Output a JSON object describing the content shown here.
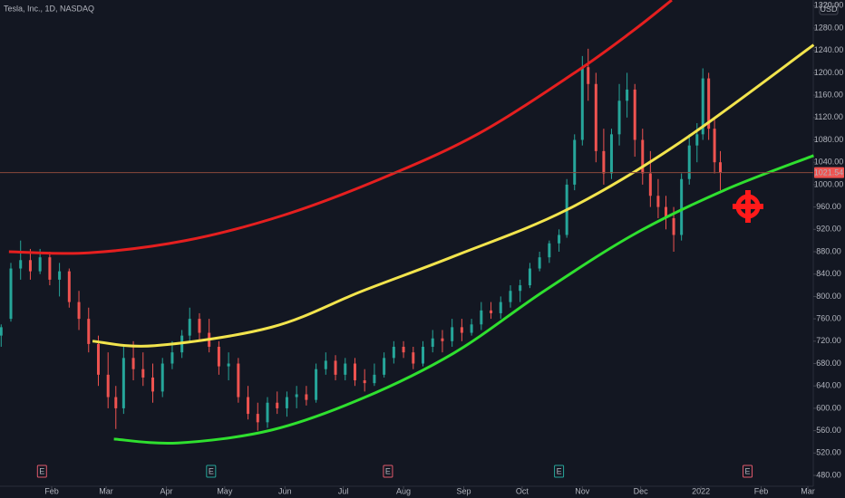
{
  "chart_data": {
    "type": "candlestick",
    "title": "Tesla, Inc., 1D, NASDAQ",
    "currency": "USD",
    "last_price": 1021.54,
    "xlim": [
      4.4,
      422.8
    ],
    "xticks": [
      {
        "value": 31,
        "label": "Feb"
      },
      {
        "value": 59,
        "label": "Mar"
      },
      {
        "value": 90,
        "label": "Apr"
      },
      {
        "value": 120,
        "label": "May"
      },
      {
        "value": 151,
        "label": "Jun"
      },
      {
        "value": 181,
        "label": "Jul"
      },
      {
        "value": 212,
        "label": "Aug"
      },
      {
        "value": 243,
        "label": "Sep"
      },
      {
        "value": 273,
        "label": "Oct"
      },
      {
        "value": 304,
        "label": "Nov"
      },
      {
        "value": 334,
        "label": "Dec"
      },
      {
        "value": 365,
        "label": "2022"
      },
      {
        "value": 396,
        "label": "Feb"
      },
      {
        "value": 420,
        "label": "Mar"
      }
    ],
    "ylim": [
      460.6,
      1330.2
    ],
    "yticks": [
      {
        "value": 480,
        "label": "480.00"
      },
      {
        "value": 520,
        "label": "520.00"
      },
      {
        "value": 560,
        "label": "560.00"
      },
      {
        "value": 600,
        "label": "600.00"
      },
      {
        "value": 640,
        "label": "640.00"
      },
      {
        "value": 680,
        "label": "680.00"
      },
      {
        "value": 720,
        "label": "720.00"
      },
      {
        "value": 760,
        "label": "760.00"
      },
      {
        "value": 800,
        "label": "800.00"
      },
      {
        "value": 840,
        "label": "840.00"
      },
      {
        "value": 880,
        "label": "880.00"
      },
      {
        "value": 920,
        "label": "920.00"
      },
      {
        "value": 960,
        "label": "960.00"
      },
      {
        "value": 1000,
        "label": "1000.00"
      },
      {
        "value": 1040,
        "label": "1040.00"
      },
      {
        "value": 1080,
        "label": "1080.00"
      },
      {
        "value": 1120,
        "label": "1120.00"
      },
      {
        "value": 1160,
        "label": "1160.00"
      },
      {
        "value": 1200,
        "label": "1200.00"
      },
      {
        "value": 1240,
        "label": "1240.00"
      },
      {
        "value": 1280,
        "label": "1280.00"
      },
      {
        "value": 1320,
        "label": "1320.00"
      }
    ],
    "up_color": "#26a69a",
    "down_color": "#ef5350",
    "x": [
      5,
      10,
      15,
      20,
      25,
      30,
      35,
      40,
      45,
      50,
      55,
      60,
      64,
      68,
      73,
      78,
      83,
      88,
      93,
      98,
      102,
      107,
      112,
      117,
      122,
      127,
      132,
      137,
      142,
      147,
      152,
      157,
      162,
      167,
      172,
      177,
      182,
      187,
      192,
      197,
      202,
      207,
      212,
      217,
      222,
      227,
      232,
      237,
      242,
      247,
      252,
      257,
      262,
      267,
      272,
      277,
      282,
      287,
      292,
      296,
      300,
      304,
      307,
      311,
      315,
      319,
      323,
      327,
      331,
      335,
      339,
      343,
      347,
      351,
      355,
      359,
      363,
      366,
      369,
      372,
      375
    ],
    "open": [
      730,
      760,
      850,
      865,
      845,
      870,
      830,
      845,
      790,
      760,
      715,
      660,
      620,
      600,
      690,
      670,
      655,
      630,
      680,
      700,
      730,
      760,
      735,
      710,
      675,
      680,
      620,
      590,
      575,
      610,
      600,
      620,
      625,
      615,
      670,
      685,
      660,
      680,
      650,
      645,
      660,
      690,
      710,
      700,
      680,
      710,
      725,
      720,
      745,
      735,
      750,
      775,
      770,
      790,
      810,
      820,
      850,
      870,
      895,
      910,
      1000,
      1080,
      1210,
      1180,
      1060,
      1020,
      1090,
      1150,
      1170,
      1080,
      1020,
      980,
      960,
      940,
      910,
      1010,
      1070,
      1090,
      1190,
      1100,
      1040
    ],
    "high": [
      750,
      860,
      900,
      885,
      885,
      880,
      860,
      850,
      810,
      780,
      730,
      700,
      640,
      710,
      720,
      700,
      680,
      690,
      720,
      740,
      780,
      770,
      760,
      720,
      700,
      690,
      640,
      610,
      620,
      630,
      630,
      640,
      640,
      680,
      700,
      695,
      690,
      690,
      670,
      680,
      700,
      720,
      720,
      710,
      720,
      740,
      740,
      760,
      760,
      760,
      790,
      790,
      800,
      820,
      830,
      860,
      880,
      900,
      920,
      1010,
      1090,
      1230,
      1243,
      1200,
      1100,
      1100,
      1180,
      1200,
      1180,
      1100,
      1060,
      1010,
      980,
      960,
      1020,
      1090,
      1110,
      1208,
      1200,
      1120,
      1060
    ],
    "low": [
      710,
      755,
      830,
      830,
      840,
      820,
      800,
      780,
      740,
      700,
      640,
      600,
      563,
      590,
      650,
      640,
      610,
      620,
      670,
      690,
      720,
      720,
      700,
      660,
      650,
      610,
      580,
      560,
      565,
      590,
      585,
      600,
      605,
      610,
      660,
      650,
      650,
      640,
      630,
      640,
      655,
      680,
      690,
      670,
      675,
      700,
      700,
      710,
      720,
      730,
      740,
      760,
      760,
      780,
      790,
      815,
      845,
      860,
      880,
      905,
      990,
      1070,
      1150,
      1040,
      1000,
      1010,
      1070,
      1120,
      1050,
      1000,
      960,
      940,
      920,
      880,
      900,
      1000,
      1040,
      1080,
      1080,
      1020,
      990
    ],
    "close": [
      745,
      850,
      865,
      845,
      870,
      830,
      845,
      790,
      760,
      715,
      660,
      620,
      600,
      690,
      670,
      655,
      630,
      680,
      700,
      730,
      760,
      735,
      710,
      675,
      680,
      620,
      590,
      575,
      610,
      600,
      620,
      625,
      615,
      670,
      685,
      660,
      680,
      650,
      645,
      660,
      690,
      710,
      700,
      680,
      710,
      725,
      720,
      745,
      735,
      750,
      775,
      770,
      790,
      810,
      820,
      850,
      870,
      895,
      910,
      1000,
      1080,
      1210,
      1180,
      1060,
      1020,
      1090,
      1150,
      1170,
      1080,
      1020,
      980,
      960,
      940,
      910,
      1010,
      1070,
      1090,
      1190,
      1100,
      1040,
      1021.54
    ],
    "lines": [
      {
        "color": "#e51f1f",
        "x": [
          9,
          50,
          100,
          150,
          200,
          250,
          300,
          330,
          350
        ],
        "values": [
          880,
          878,
          900,
          945,
          1010,
          1090,
          1200,
          1275,
          1330
        ]
      },
      {
        "color": "#f2e44d",
        "x": [
          52,
          84,
          144,
          191,
          238,
          296,
          354,
          423
        ],
        "values": [
          720,
          712,
          745,
          810,
          872,
          955,
          1075,
          1250
        ]
      },
      {
        "color": "#2fe02f",
        "x": [
          63,
          96,
          144,
          191,
          238,
          284,
          331,
          377,
          423
        ],
        "values": [
          545,
          538,
          561,
          618,
          699,
          809,
          912,
          990,
          1052
        ]
      }
    ],
    "earnings": {
      "label": "E",
      "x": [
        26,
        113,
        204,
        292,
        389
      ]
    }
  }
}
